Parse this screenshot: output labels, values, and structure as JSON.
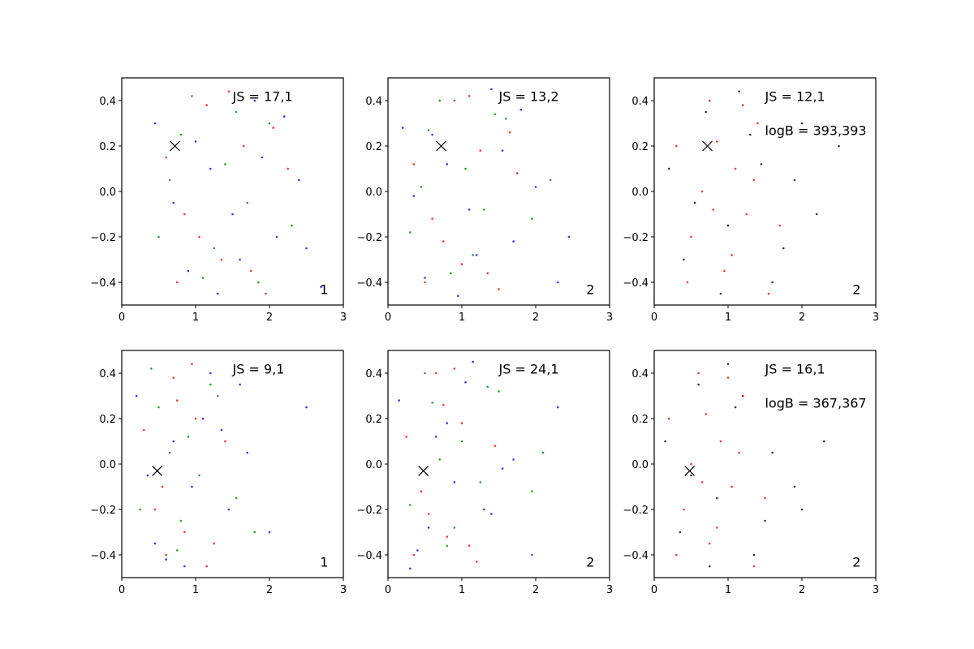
{
  "chart_data": [
    {
      "type": "scatter",
      "xlim": [
        0,
        3
      ],
      "ylim": [
        -0.5,
        0.5
      ],
      "xticks": [
        0,
        1,
        2,
        3
      ],
      "yticks": [
        {
          "value": -0.4,
          "label": "−0.4"
        },
        {
          "value": -0.2,
          "label": "−0.2"
        },
        {
          "value": 0,
          "label": "0.0"
        },
        0.2,
        0.4
      ],
      "js_label": "JS = 17,1",
      "panel_label": "1",
      "marker_point": {
        "x": 0.72,
        "y": 0.2
      },
      "series": [
        {
          "color": "blue",
          "x": [
            0.45,
            0.9,
            1.2,
            1.5,
            1.8,
            2.1,
            2.4,
            2.7,
            1.0,
            1.6,
            2.2,
            0.7,
            1.3,
            1.9,
            2.5
          ],
          "y": [
            0.3,
            -0.35,
            0.1,
            -0.1,
            0.4,
            -0.2,
            0.05,
            -0.42,
            0.22,
            -0.3,
            0.33,
            -0.05,
            -0.45,
            0.15,
            -0.25
          ]
        },
        {
          "color": "green",
          "x": [
            0.5,
            0.8,
            1.1,
            1.4,
            1.7,
            2.0,
            2.3,
            0.95,
            1.25,
            1.55,
            1.85,
            0.65
          ],
          "y": [
            -0.2,
            0.25,
            -0.38,
            0.12,
            -0.05,
            0.3,
            -0.15,
            0.42,
            -0.25,
            0.35,
            -0.4,
            0.05
          ]
        },
        {
          "color": "red",
          "x": [
            0.6,
            0.85,
            1.15,
            1.35,
            1.65,
            1.95,
            2.25,
            1.05,
            1.45,
            1.75,
            0.75,
            2.05
          ],
          "y": [
            0.15,
            -0.1,
            0.38,
            -0.3,
            0.2,
            -0.45,
            0.1,
            -0.2,
            0.44,
            -0.35,
            -0.4,
            0.28
          ]
        }
      ]
    },
    {
      "type": "scatter",
      "xlim": [
        0,
        3
      ],
      "ylim": [
        -0.5,
        0.5
      ],
      "xticks": [
        0,
        1,
        2,
        3
      ],
      "yticks": [
        {
          "value": -0.4,
          "label": "−0.4"
        },
        {
          "value": -0.2,
          "label": "−0.2"
        },
        {
          "value": 0,
          "label": "0.0"
        },
        0.2,
        0.4
      ],
      "js_label": "JS = 13,2",
      "panel_label": "2",
      "marker_point": {
        "x": 0.72,
        "y": 0.2
      },
      "series": [
        {
          "color": "blue",
          "x": [
            0.2,
            0.5,
            0.8,
            1.1,
            1.4,
            1.7,
            2.0,
            2.3,
            0.6,
            1.2,
            1.8,
            0.35,
            0.95,
            1.55,
            2.45
          ],
          "y": [
            0.28,
            -0.38,
            0.12,
            -0.08,
            0.45,
            -0.22,
            0.02,
            -0.4,
            0.25,
            -0.28,
            0.36,
            -0.02,
            -0.46,
            0.18,
            -0.2
          ]
        },
        {
          "color": "green",
          "x": [
            0.3,
            0.55,
            0.85,
            1.05,
            1.3,
            1.6,
            1.95,
            0.7,
            1.15,
            1.45,
            2.2,
            0.45
          ],
          "y": [
            -0.18,
            0.27,
            -0.36,
            0.1,
            -0.08,
            0.32,
            -0.12,
            0.4,
            -0.28,
            0.34,
            0.05,
            0.02
          ]
        },
        {
          "color": "red",
          "x": [
            0.35,
            0.6,
            0.9,
            1.0,
            1.25,
            1.5,
            1.75,
            0.75,
            1.1,
            1.35,
            0.5,
            1.65
          ],
          "y": [
            0.12,
            -0.12,
            0.4,
            -0.32,
            0.18,
            -0.43,
            0.08,
            -0.22,
            0.42,
            -0.36,
            -0.4,
            0.26
          ]
        }
      ]
    },
    {
      "type": "scatter",
      "xlim": [
        0,
        3
      ],
      "ylim": [
        -0.5,
        0.5
      ],
      "xticks": [
        0,
        1,
        2,
        3
      ],
      "yticks": [
        {
          "value": -0.4,
          "label": "−0.4"
        },
        {
          "value": -0.2,
          "label": "−0.2"
        },
        {
          "value": 0,
          "label": "0.0"
        },
        0.2,
        0.4
      ],
      "js_label": "JS = 12,1",
      "logb_label": "logB = 393,393",
      "panel_label": "2",
      "marker_point": {
        "x": 0.72,
        "y": 0.2
      },
      "series": [
        {
          "color": "black",
          "x": [
            0.2,
            0.4,
            0.7,
            1.0,
            1.3,
            1.6,
            1.9,
            2.2,
            2.5,
            0.55,
            1.15,
            1.75,
            0.9,
            2.0,
            1.45
          ],
          "y": [
            0.1,
            -0.3,
            0.35,
            -0.15,
            0.25,
            -0.4,
            0.05,
            -0.1,
            0.2,
            -0.05,
            0.44,
            -0.25,
            -0.45,
            0.3,
            0.12
          ]
        },
        {
          "color": "red",
          "x": [
            0.3,
            0.5,
            0.75,
            0.95,
            1.1,
            1.25,
            1.4,
            1.55,
            0.65,
            0.85,
            1.05,
            1.2,
            0.45,
            1.35,
            1.7,
            0.8
          ],
          "y": [
            0.2,
            -0.2,
            0.4,
            -0.35,
            0.1,
            -0.1,
            0.3,
            -0.45,
            0.0,
            0.22,
            -0.28,
            0.38,
            -0.4,
            0.05,
            -0.15,
            -0.08
          ]
        }
      ]
    },
    {
      "type": "scatter",
      "xlim": [
        0,
        3
      ],
      "ylim": [
        -0.5,
        0.5
      ],
      "xticks": [
        0,
        1,
        2,
        3
      ],
      "yticks": [
        {
          "value": -0.4,
          "label": "−0.4"
        },
        {
          "value": -0.2,
          "label": "−0.2"
        },
        {
          "value": 0,
          "label": "0.0"
        },
        0.2,
        0.4
      ],
      "js_label": "JS = 9,1",
      "panel_label": "1",
      "marker_point": {
        "x": 0.48,
        "y": -0.03
      },
      "series": [
        {
          "color": "blue",
          "x": [
            0.2,
            0.45,
            0.7,
            0.95,
            1.2,
            1.45,
            1.7,
            2.0,
            2.5,
            0.6,
            1.1,
            1.6,
            0.35,
            0.85,
            1.35
          ],
          "y": [
            0.3,
            -0.35,
            0.1,
            -0.1,
            0.4,
            -0.2,
            0.05,
            -0.3,
            0.25,
            -0.42,
            0.2,
            0.35,
            -0.05,
            -0.45,
            0.15
          ]
        },
        {
          "color": "green",
          "x": [
            0.25,
            0.5,
            0.75,
            0.9,
            1.05,
            1.3,
            1.55,
            0.4,
            0.8,
            1.2,
            1.8,
            0.65
          ],
          "y": [
            -0.2,
            0.25,
            -0.38,
            0.12,
            -0.05,
            0.3,
            -0.15,
            0.42,
            -0.25,
            0.35,
            -0.3,
            0.05
          ]
        },
        {
          "color": "red",
          "x": [
            0.3,
            0.55,
            0.7,
            0.85,
            1.0,
            1.15,
            1.4,
            0.45,
            0.95,
            1.25,
            0.6,
            0.75
          ],
          "y": [
            0.15,
            -0.1,
            0.38,
            -0.3,
            0.2,
            -0.45,
            0.1,
            -0.2,
            0.44,
            -0.35,
            -0.4,
            0.28
          ]
        }
      ]
    },
    {
      "type": "scatter",
      "xlim": [
        0,
        3
      ],
      "ylim": [
        -0.5,
        0.5
      ],
      "xticks": [
        0,
        1,
        2,
        3
      ],
      "yticks": [
        {
          "value": -0.4,
          "label": "−0.4"
        },
        {
          "value": -0.2,
          "label": "−0.2"
        },
        {
          "value": 0,
          "label": "0.0"
        },
        0.2,
        0.4
      ],
      "js_label": "JS = 24,1",
      "panel_label": "2",
      "marker_point": {
        "x": 0.48,
        "y": -0.03
      },
      "series": [
        {
          "color": "blue",
          "x": [
            0.15,
            0.4,
            0.65,
            0.9,
            1.15,
            1.4,
            1.7,
            1.95,
            2.3,
            0.55,
            1.05,
            1.55,
            0.3,
            0.8,
            1.3
          ],
          "y": [
            0.28,
            -0.38,
            0.12,
            -0.08,
            0.45,
            -0.22,
            0.02,
            -0.4,
            0.25,
            -0.28,
            0.36,
            -0.02,
            -0.46,
            0.18,
            -0.2
          ]
        },
        {
          "color": "green",
          "x": [
            0.3,
            0.6,
            0.8,
            1.0,
            1.25,
            1.5,
            1.95,
            0.5,
            0.9,
            1.35,
            2.1,
            0.7
          ],
          "y": [
            -0.18,
            0.27,
            -0.36,
            0.1,
            -0.08,
            0.32,
            -0.12,
            0.4,
            -0.28,
            0.34,
            0.05,
            0.02
          ]
        },
        {
          "color": "red",
          "x": [
            0.25,
            0.45,
            0.65,
            0.8,
            1.0,
            1.2,
            1.45,
            0.55,
            0.9,
            1.1,
            0.35,
            0.75
          ],
          "y": [
            0.12,
            -0.12,
            0.4,
            -0.32,
            0.18,
            -0.43,
            0.08,
            -0.22,
            0.42,
            -0.36,
            -0.4,
            0.26
          ]
        }
      ]
    },
    {
      "type": "scatter",
      "xlim": [
        0,
        3
      ],
      "ylim": [
        -0.5,
        0.5
      ],
      "xticks": [
        0,
        1,
        2,
        3
      ],
      "yticks": [
        {
          "value": -0.4,
          "label": "−0.4"
        },
        {
          "value": -0.2,
          "label": "−0.2"
        },
        {
          "value": 0,
          "label": "0.0"
        },
        0.2,
        0.4
      ],
      "js_label": "JS = 16,1",
      "logb_label": "logB = 367,367",
      "panel_label": "2",
      "marker_point": {
        "x": 0.48,
        "y": -0.03
      },
      "series": [
        {
          "color": "black",
          "x": [
            0.15,
            0.35,
            0.6,
            0.85,
            1.1,
            1.35,
            1.6,
            1.9,
            2.3,
            0.5,
            1.0,
            1.5,
            0.75,
            1.2,
            2.0
          ],
          "y": [
            0.1,
            -0.3,
            0.35,
            -0.15,
            0.25,
            -0.4,
            0.05,
            -0.1,
            0.1,
            -0.05,
            0.44,
            -0.25,
            -0.45,
            0.3,
            -0.2
          ]
        },
        {
          "color": "red",
          "x": [
            0.2,
            0.4,
            0.6,
            0.75,
            0.9,
            1.05,
            1.2,
            1.35,
            0.5,
            0.7,
            0.85,
            1.0,
            0.3,
            1.15,
            1.5,
            0.65
          ],
          "y": [
            0.2,
            -0.2,
            0.4,
            -0.35,
            0.1,
            -0.1,
            0.3,
            -0.45,
            0.0,
            0.22,
            -0.28,
            0.38,
            -0.4,
            0.05,
            -0.15,
            -0.08
          ]
        }
      ]
    }
  ]
}
